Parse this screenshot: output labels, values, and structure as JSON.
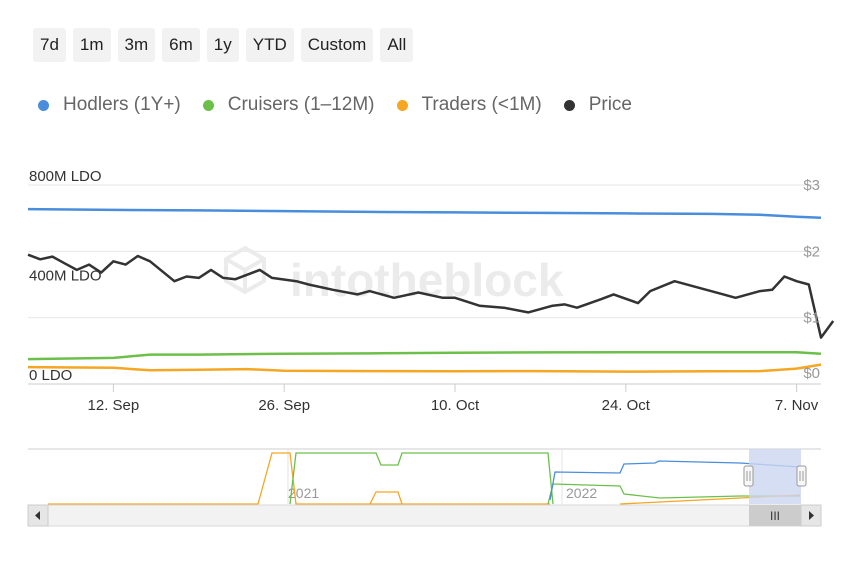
{
  "range_buttons": [
    "7d",
    "1m",
    "3m",
    "6m",
    "1y",
    "YTD",
    "Custom",
    "All"
  ],
  "legend": [
    {
      "label": "Hodlers (1Y+)",
      "color": "#4a8ddc"
    },
    {
      "label": "Cruisers (1–12M)",
      "color": "#6cc04a"
    },
    {
      "label": "Traders (<1M)",
      "color": "#f5a623"
    },
    {
      "label": "Price",
      "color": "#333333"
    }
  ],
  "watermark": "intotheblock",
  "navigator": {
    "year_labels": [
      "2021",
      "2022"
    ],
    "scroll_grip_icon": "III"
  },
  "chart_data": {
    "type": "line",
    "title": "",
    "x_start": "2022-09-05",
    "x_end": "2022-11-09",
    "x_tick_labels": [
      {
        "label": "12. Sep",
        "date": "2022-09-12"
      },
      {
        "label": "26. Sep",
        "date": "2022-09-26"
      },
      {
        "label": "10. Oct",
        "date": "2022-10-10"
      },
      {
        "label": "24. Oct",
        "date": "2022-10-24"
      },
      {
        "label": "7. Nov",
        "date": "2022-11-07"
      }
    ],
    "y_left": {
      "unit": "LDO",
      "range": [
        0,
        800000000
      ],
      "tick_labels": [
        {
          "label": "0 LDO",
          "value": 0
        },
        {
          "label": "400M LDO",
          "value": 400000000
        },
        {
          "label": "800M LDO",
          "value": 800000000
        }
      ]
    },
    "y_right": {
      "unit": "$",
      "range": [
        0,
        3
      ],
      "tick_labels": [
        {
          "label": "$0",
          "value": 0
        },
        {
          "label": "$1",
          "value": 1
        },
        {
          "label": "$2",
          "value": 2
        },
        {
          "label": "$3",
          "value": 3
        }
      ]
    },
    "grid": true,
    "legend_position": "top",
    "series": [
      {
        "name": "Hodlers (1Y+)",
        "axis": "left",
        "color": "#4a8ddc",
        "points": [
          [
            "2022-09-05",
            703000000
          ],
          [
            "2022-09-12",
            700000000
          ],
          [
            "2022-09-19",
            698000000
          ],
          [
            "2022-09-26",
            695000000
          ],
          [
            "2022-10-03",
            692000000
          ],
          [
            "2022-10-10",
            690000000
          ],
          [
            "2022-10-17",
            688000000
          ],
          [
            "2022-10-24",
            686000000
          ],
          [
            "2022-10-31",
            684000000
          ],
          [
            "2022-11-04",
            680000000
          ],
          [
            "2022-11-07",
            672000000
          ],
          [
            "2022-11-09",
            668000000
          ]
        ]
      },
      {
        "name": "Cruisers (1–12M)",
        "axis": "left",
        "color": "#6cc04a",
        "points": [
          [
            "2022-09-05",
            100000000
          ],
          [
            "2022-09-12",
            105000000
          ],
          [
            "2022-09-15",
            118000000
          ],
          [
            "2022-09-19",
            118000000
          ],
          [
            "2022-09-26",
            122000000
          ],
          [
            "2022-10-03",
            123000000
          ],
          [
            "2022-10-10",
            126000000
          ],
          [
            "2022-10-17",
            127000000
          ],
          [
            "2022-10-24",
            128000000
          ],
          [
            "2022-10-31",
            128000000
          ],
          [
            "2022-11-07",
            128000000
          ],
          [
            "2022-11-09",
            122000000
          ]
        ]
      },
      {
        "name": "Traders (<1M)",
        "axis": "left",
        "color": "#f5a623",
        "points": [
          [
            "2022-09-05",
            68000000
          ],
          [
            "2022-09-12",
            65000000
          ],
          [
            "2022-09-15",
            55000000
          ],
          [
            "2022-09-19",
            57000000
          ],
          [
            "2022-09-23",
            60000000
          ],
          [
            "2022-09-26",
            53000000
          ],
          [
            "2022-10-03",
            52000000
          ],
          [
            "2022-10-10",
            51000000
          ],
          [
            "2022-10-17",
            52000000
          ],
          [
            "2022-10-24",
            50000000
          ],
          [
            "2022-10-31",
            51000000
          ],
          [
            "2022-11-04",
            52000000
          ],
          [
            "2022-11-07",
            62000000
          ],
          [
            "2022-11-09",
            78000000
          ]
        ]
      },
      {
        "name": "Price",
        "axis": "right",
        "color": "#333333",
        "points": [
          [
            "2022-09-05",
            1.95
          ],
          [
            "2022-09-06",
            1.88
          ],
          [
            "2022-09-07",
            1.92
          ],
          [
            "2022-09-08",
            1.82
          ],
          [
            "2022-09-09",
            1.72
          ],
          [
            "2022-09-10",
            1.8
          ],
          [
            "2022-09-11",
            1.68
          ],
          [
            "2022-09-12",
            1.85
          ],
          [
            "2022-09-13",
            1.8
          ],
          [
            "2022-09-14",
            1.93
          ],
          [
            "2022-09-15",
            1.85
          ],
          [
            "2022-09-17",
            1.55
          ],
          [
            "2022-09-18",
            1.62
          ],
          [
            "2022-09-19",
            1.6
          ],
          [
            "2022-09-20",
            1.72
          ],
          [
            "2022-09-21",
            1.6
          ],
          [
            "2022-09-22",
            1.58
          ],
          [
            "2022-09-24",
            1.72
          ],
          [
            "2022-09-25",
            1.6
          ],
          [
            "2022-09-27",
            1.55
          ],
          [
            "2022-09-28",
            1.5
          ],
          [
            "2022-09-30",
            1.42
          ],
          [
            "2022-10-02",
            1.35
          ],
          [
            "2022-10-03",
            1.4
          ],
          [
            "2022-10-05",
            1.3
          ],
          [
            "2022-10-07",
            1.38
          ],
          [
            "2022-10-09",
            1.3
          ],
          [
            "2022-10-10",
            1.3
          ],
          [
            "2022-10-12",
            1.18
          ],
          [
            "2022-10-14",
            1.15
          ],
          [
            "2022-10-16",
            1.08
          ],
          [
            "2022-10-18",
            1.18
          ],
          [
            "2022-10-19",
            1.2
          ],
          [
            "2022-10-20",
            1.15
          ],
          [
            "2022-10-22",
            1.28
          ],
          [
            "2022-10-23",
            1.35
          ],
          [
            "2022-10-25",
            1.22
          ],
          [
            "2022-10-26",
            1.4
          ],
          [
            "2022-10-28",
            1.55
          ],
          [
            "2022-10-30",
            1.45
          ],
          [
            "2022-11-01",
            1.35
          ],
          [
            "2022-11-02",
            1.3
          ],
          [
            "2022-11-04",
            1.4
          ],
          [
            "2022-11-05",
            1.42
          ],
          [
            "2022-11-06",
            1.62
          ],
          [
            "2022-11-07",
            1.55
          ],
          [
            "2022-11-08",
            1.5
          ],
          [
            "2022-11-09",
            0.7
          ],
          [
            "2022-11-10",
            0.95
          ]
        ]
      }
    ]
  }
}
